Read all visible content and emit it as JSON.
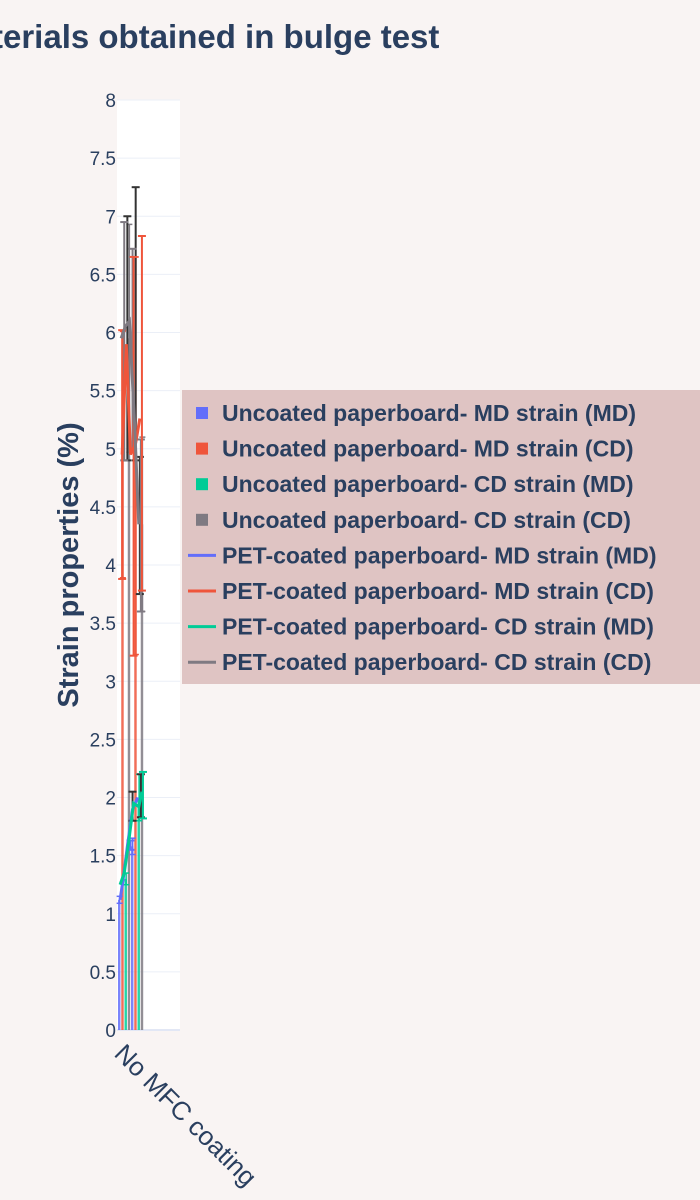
{
  "chart_data": {
    "type": "bar",
    "title": "terials obtained in bulge test",
    "ylabel": "Strain properties (%)",
    "xlabel": "",
    "ylim": [
      0,
      8
    ],
    "yticks": [
      "0",
      "0.5",
      "1",
      "1.5",
      "2",
      "2.5",
      "3",
      "3.5",
      "4",
      "4.5",
      "5",
      "5.5",
      "6",
      "6.5",
      "7",
      "7.5",
      "8"
    ],
    "categories": [
      "No MFC coating"
    ],
    "legend_position": "right",
    "bar_series": [
      {
        "name": "Uncoated paperboard- MD strain (MD)",
        "color": "#636efa",
        "values": [
          1.12
        ],
        "error": [
          0.03
        ]
      },
      {
        "name": "Uncoated paperboard- MD strain (CD)",
        "color": "#ef553b",
        "values": [
          4.95
        ],
        "error": [
          1.06
        ]
      },
      {
        "name": "Uncoated paperboard- CD strain (MD)",
        "color": "#00cc96",
        "values": [
          1.3
        ],
        "error": [
          0.05
        ]
      },
      {
        "name": "Uncoated paperboard- CD strain (CD)",
        "color": "#7f7a82",
        "values": [
          5.95
        ],
        "error": [
          0.98
        ]
      },
      {
        "name": "PET-coated paperboard- MD strain (MD)",
        "color": "#636efa",
        "values": [
          1.58
        ],
        "error": [
          0.07
        ]
      },
      {
        "name": "PET-coated paperboard- MD strain (CD)",
        "color": "#ef553b",
        "values": [
          4.94
        ],
        "error": [
          1.71
        ]
      },
      {
        "name": "PET-coated paperboard- CD strain (MD)",
        "color": "#00cc96",
        "values": [
          2.0
        ],
        "error": [
          0.2
        ]
      },
      {
        "name": "PET-coated paperboard- CD strain (CD)",
        "color": "#7f7a82",
        "values": [
          4.35
        ],
        "error": [
          0.75
        ]
      }
    ],
    "line_series": [
      {
        "name": "PET-coated paperboard- MD strain (MD)",
        "color": "#636efa",
        "points": [
          [
            0.1,
            1.12
          ],
          [
            0.25,
            1.3
          ],
          [
            0.45,
            1.58
          ],
          [
            0.7,
            1.9
          ],
          [
            0.95,
            2.0
          ]
        ]
      },
      {
        "name": "PET-coated paperboard- MD strain (CD)",
        "color": "#ef553b",
        "points": [
          [
            0.2,
            4.95
          ],
          [
            0.4,
            5.9
          ],
          [
            0.6,
            4.95
          ],
          [
            0.85,
            5.05
          ],
          [
            1.05,
            5.26
          ]
        ]
      },
      {
        "name": "PET-coated paperboard- CD strain (MD)",
        "color": "#00cc96",
        "points": [
          [
            0.1,
            1.25
          ],
          [
            0.3,
            1.35
          ],
          [
            0.5,
            1.6
          ],
          [
            0.75,
            1.95
          ],
          [
            1.0,
            1.92
          ],
          [
            1.15,
            2.05
          ]
        ]
      },
      {
        "name": "PET-coated paperboard- CD strain (CD)",
        "color": "#7f7a82",
        "points": [
          [
            0.15,
            5.95
          ],
          [
            0.35,
            6.05
          ],
          [
            0.55,
            6.1
          ],
          [
            0.8,
            5.2
          ],
          [
            1.0,
            4.35
          ]
        ]
      }
    ],
    "extra_errorbars": [
      {
        "color": "#333333",
        "x": 0.45,
        "low": 4.9,
        "high": 7.0
      },
      {
        "color": "#333333",
        "x": 0.85,
        "low": 4.9,
        "high": 7.25
      },
      {
        "color": "#333333",
        "x": 1.05,
        "low": 3.75,
        "high": 4.93
      },
      {
        "color": "#333333",
        "x": 0.7,
        "low": 1.8,
        "high": 2.05
      },
      {
        "color": "#333333",
        "x": 1.1,
        "low": 1.83,
        "high": 2.2
      },
      {
        "color": "#7f7a82",
        "x": 0.3,
        "low": 4.9,
        "high": 6.95
      },
      {
        "color": "#7f7a82",
        "x": 0.7,
        "low": 5.0,
        "high": 6.72
      },
      {
        "color": "#7f7a82",
        "x": 1.1,
        "low": 3.6,
        "high": 5.08
      },
      {
        "color": "#ef553b",
        "x": 1.15,
        "low": 3.78,
        "high": 6.83
      },
      {
        "color": "#ef553b",
        "x": 0.75,
        "low": 3.22,
        "high": 6.65
      },
      {
        "color": "#ef553b",
        "x": 0.2,
        "low": 3.88,
        "high": 6.02
      },
      {
        "color": "#00cc96",
        "x": 1.2,
        "low": 1.82,
        "high": 2.22
      },
      {
        "color": "#636efa",
        "x": 0.6,
        "low": 1.55,
        "high": 1.63
      }
    ]
  }
}
